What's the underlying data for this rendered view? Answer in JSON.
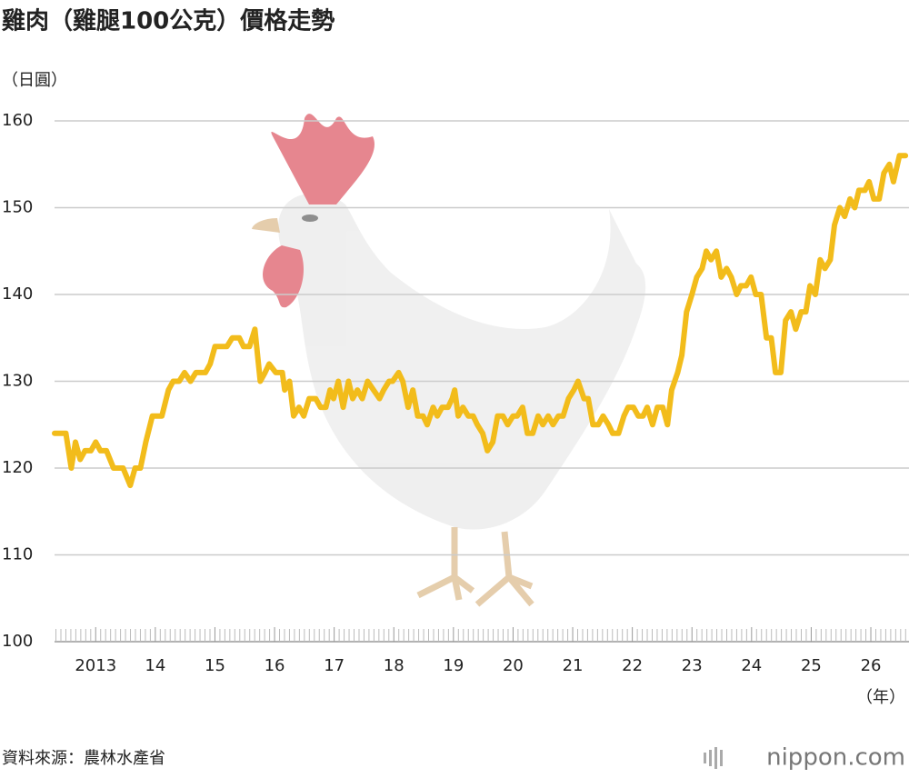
{
  "chart_data": {
    "type": "line",
    "title": "雞肉（雞腿100公克）價格走勢",
    "y_label": "（日圓）",
    "x_label": "（年）",
    "source": "資料來源：農林水產省",
    "logo": "nippon.com",
    "xlim": [
      2012.31,
      2026.64
    ],
    "xticks": [
      2013,
      {
        "value": 2014,
        "label": "14"
      },
      {
        "value": 2015,
        "label": "15"
      },
      {
        "value": 2016,
        "label": "16"
      },
      {
        "value": 2017,
        "label": "17"
      },
      {
        "value": 2018,
        "label": "18"
      },
      {
        "value": 2019,
        "label": "19"
      },
      {
        "value": 2020,
        "label": "20"
      },
      {
        "value": 2021,
        "label": "21"
      },
      {
        "value": 2022,
        "label": "22"
      },
      {
        "value": 2023,
        "label": "23"
      },
      {
        "value": 2024,
        "label": "24"
      },
      {
        "value": 2025,
        "label": "25"
      },
      {
        "value": 2026,
        "label": "26"
      }
    ],
    "ylim": [
      100,
      160
    ],
    "yticks": [
      100,
      110,
      120,
      130,
      140,
      150,
      160
    ],
    "grid": true,
    "series": [
      {
        "color": "#f2bc1b",
        "x": [
          2012.31,
          2012.5,
          2012.59,
          2012.66,
          2012.74,
          2012.82,
          2012.92,
          2013.0,
          2013.08,
          2013.18,
          2013.3,
          2013.46,
          2013.58,
          2013.66,
          2013.75,
          2013.84,
          2013.95,
          2014.11,
          2014.22,
          2014.3,
          2014.4,
          2014.49,
          2014.59,
          2014.68,
          2014.84,
          2014.92,
          2015.0,
          2015.2,
          2015.29,
          2015.41,
          2015.48,
          2015.58,
          2015.67,
          2015.76,
          2015.84,
          2015.91,
          2016.02,
          2016.13,
          2016.17,
          2016.25,
          2016.32,
          2016.41,
          2016.49,
          2016.58,
          2016.69,
          2016.77,
          2016.86,
          2016.93,
          2016.99,
          2017.07,
          2017.15,
          2017.24,
          2017.31,
          2017.39,
          2017.47,
          2017.56,
          2017.66,
          2017.76,
          2017.83,
          2017.92,
          2017.98,
          2018.08,
          2018.15,
          2018.24,
          2018.32,
          2018.4,
          2018.49,
          2018.56,
          2018.66,
          2018.73,
          2018.81,
          2018.91,
          2018.98,
          2019.02,
          2019.08,
          2019.16,
          2019.25,
          2019.33,
          2019.4,
          2019.49,
          2019.57,
          2019.66,
          2019.74,
          2019.83,
          2019.91,
          2020.0,
          2020.07,
          2020.16,
          2020.24,
          2020.33,
          2020.42,
          2020.5,
          2020.59,
          2020.67,
          2020.76,
          2020.84,
          2020.93,
          2021.02,
          2021.09,
          2021.19,
          2021.26,
          2021.34,
          2021.43,
          2021.51,
          2021.6,
          2021.67,
          2021.77,
          2021.86,
          2021.93,
          2022.02,
          2022.1,
          2022.18,
          2022.25,
          2022.34,
          2022.42,
          2022.51,
          2022.59,
          2022.66,
          2022.76,
          2022.83,
          2022.91,
          2023.0,
          2023.08,
          2023.17,
          2023.24,
          2023.32,
          2023.41,
          2023.49,
          2023.58,
          2023.66,
          2023.75,
          2023.82,
          2023.91,
          2023.99,
          2024.07,
          2024.16,
          2024.25,
          2024.33,
          2024.4,
          2024.49,
          2024.57,
          2024.66,
          2024.74,
          2024.83,
          2024.91,
          2024.98,
          2025.07,
          2025.15,
          2025.23,
          2025.32,
          2025.39,
          2025.48,
          2025.56,
          2025.65,
          2025.73,
          2025.8,
          2025.9,
          2025.97,
          2026.05,
          2026.14,
          2026.22,
          2026.31,
          2026.38,
          2026.48,
          2026.58
        ],
        "values": [
          124,
          124,
          120,
          123,
          121,
          122,
          122,
          123,
          122,
          122,
          120,
          120,
          118,
          120,
          120,
          123,
          126,
          126,
          129,
          130,
          130,
          131,
          130,
          131,
          131,
          132,
          134,
          134,
          135,
          135,
          134,
          134,
          136,
          130,
          131,
          132,
          131,
          131,
          129,
          130,
          126,
          127,
          126,
          128,
          128,
          127,
          127,
          129,
          128,
          130,
          127,
          130,
          128,
          129,
          128,
          130,
          129,
          128,
          129,
          130,
          130,
          131,
          130,
          127,
          129,
          126,
          126,
          125,
          127,
          126,
          127,
          127,
          128,
          129,
          126,
          127,
          126,
          126,
          125,
          124,
          122,
          123,
          126,
          126,
          125,
          126,
          126,
          127,
          124,
          124,
          126,
          125,
          126,
          125,
          126,
          126,
          128,
          129,
          130,
          128,
          128,
          125,
          125,
          126,
          125,
          124,
          124,
          126,
          127,
          127,
          126,
          126,
          127,
          125,
          127,
          127,
          125,
          129,
          131,
          133,
          138,
          140,
          142,
          143,
          145,
          144,
          145,
          142,
          143,
          142,
          140,
          141,
          141,
          142,
          140,
          140,
          135,
          135,
          131,
          131,
          137,
          138,
          136,
          138,
          138,
          141,
          140,
          144,
          143,
          144,
          148,
          150,
          149,
          151,
          150,
          152,
          152,
          153,
          151,
          151,
          154,
          155,
          153,
          156,
          156
        ]
      }
    ]
  }
}
